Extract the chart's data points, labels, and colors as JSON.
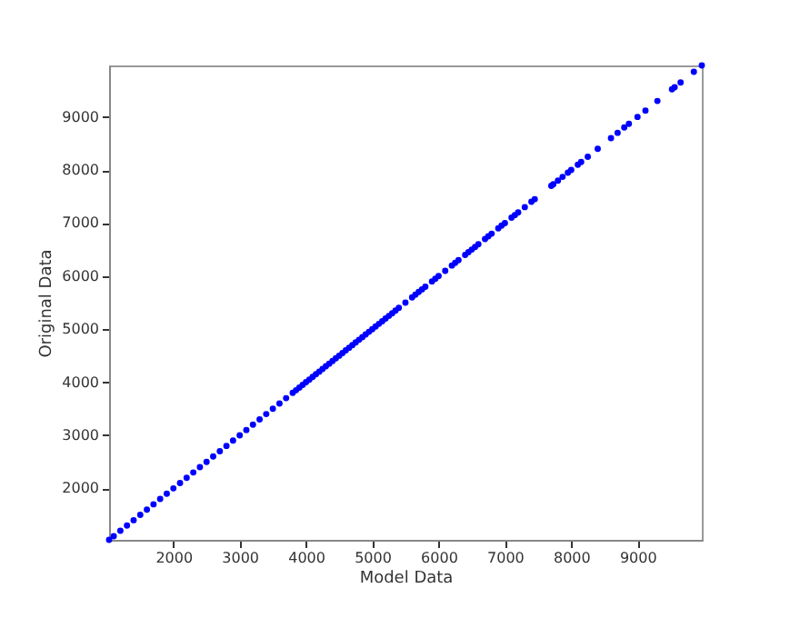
{
  "chart_data": {
    "type": "scatter",
    "xlabel": "Model Data",
    "ylabel": "Original Data",
    "xlim": [
      1030,
      9970
    ],
    "ylim": [
      1030,
      9970
    ],
    "xticks": [
      2000,
      3000,
      4000,
      5000,
      6000,
      7000,
      8000,
      9000
    ],
    "yticks": [
      2000,
      3000,
      4000,
      5000,
      6000,
      7000,
      8000,
      9000
    ],
    "marker": "circle",
    "grid": false,
    "x": [
      1030,
      1100,
      1200,
      1300,
      1400,
      1500,
      1600,
      1700,
      1800,
      1900,
      2000,
      2100,
      2200,
      2300,
      2400,
      2500,
      2600,
      2700,
      2800,
      2900,
      3000,
      3100,
      3200,
      3300,
      3400,
      3500,
      3600,
      3700,
      3800,
      3850,
      3900,
      3950,
      4000,
      4050,
      4100,
      4150,
      4200,
      4250,
      4300,
      4350,
      4400,
      4450,
      4500,
      4550,
      4600,
      4650,
      4700,
      4750,
      4800,
      4850,
      4900,
      4950,
      5000,
      5050,
      5100,
      5150,
      5200,
      5250,
      5300,
      5350,
      5400,
      5500,
      5600,
      5650,
      5700,
      5750,
      5800,
      5900,
      5950,
      6000,
      6100,
      6200,
      6250,
      6300,
      6400,
      6450,
      6500,
      6550,
      6600,
      6700,
      6750,
      6800,
      6900,
      6950,
      7000,
      7100,
      7150,
      7200,
      7300,
      7400,
      7450,
      7700,
      7730,
      7800,
      7870,
      7950,
      8000,
      8100,
      8150,
      8250,
      8400,
      8600,
      8700,
      8800,
      8870,
      9000,
      9120,
      9300,
      9520,
      9560,
      9650,
      9850,
      9970
    ],
    "series": [
      {
        "color": "#0000ff",
        "values": [
          1030,
          1100,
          1200,
          1300,
          1400,
          1500,
          1600,
          1700,
          1800,
          1900,
          2000,
          2100,
          2200,
          2300,
          2400,
          2500,
          2600,
          2700,
          2800,
          2900,
          3000,
          3100,
          3200,
          3300,
          3400,
          3500,
          3600,
          3700,
          3800,
          3850,
          3900,
          3950,
          4000,
          4050,
          4100,
          4150,
          4200,
          4250,
          4300,
          4350,
          4400,
          4450,
          4500,
          4550,
          4600,
          4650,
          4700,
          4750,
          4800,
          4850,
          4900,
          4950,
          5000,
          5050,
          5100,
          5150,
          5200,
          5250,
          5300,
          5350,
          5400,
          5500,
          5600,
          5650,
          5700,
          5750,
          5800,
          5900,
          5950,
          6000,
          6100,
          6200,
          6250,
          6300,
          6400,
          6450,
          6500,
          6550,
          6600,
          6700,
          6750,
          6800,
          6900,
          6950,
          7000,
          7100,
          7150,
          7200,
          7300,
          7400,
          7450,
          7700,
          7730,
          7800,
          7870,
          7950,
          8000,
          8100,
          8150,
          8250,
          8400,
          8600,
          8700,
          8800,
          8870,
          9000,
          9120,
          9300,
          9520,
          9560,
          9650,
          9850,
          9970
        ]
      }
    ]
  }
}
